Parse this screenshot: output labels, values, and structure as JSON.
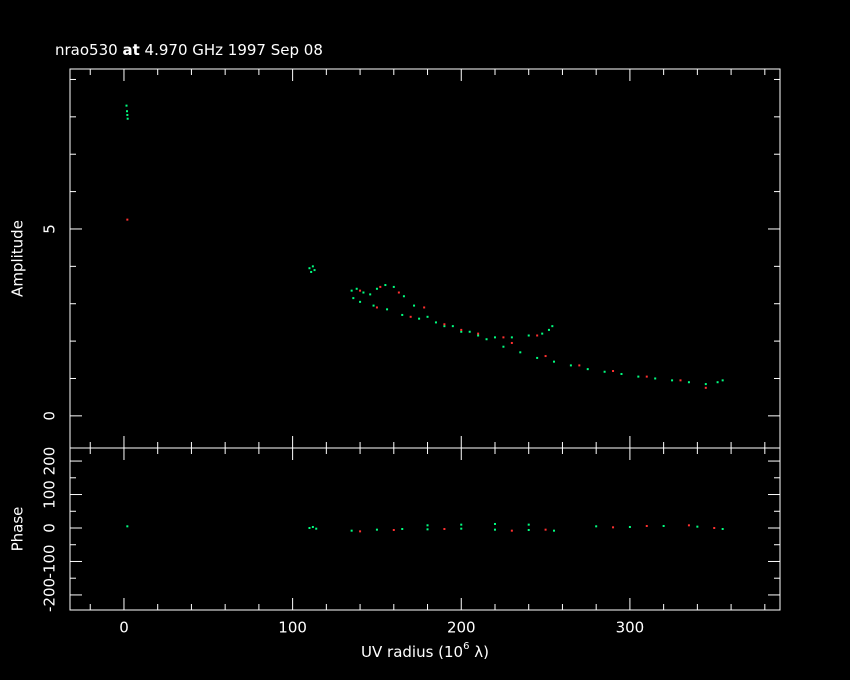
{
  "chart_data": [
    {
      "type": "scatter",
      "title_parts": [
        "nrao530",
        "at",
        "4.970 GHz 1997 Sep 08"
      ],
      "ylabel": "Amplitude",
      "xlim": [
        -32,
        389
      ],
      "xticks": [
        0,
        100,
        200,
        300
      ],
      "xminorticks": [
        -20,
        20,
        40,
        60,
        80,
        120,
        140,
        160,
        180,
        220,
        240,
        260,
        280,
        320,
        340,
        360,
        380
      ],
      "ylim": [
        -0.86,
        9.28
      ],
      "yticks": [
        0,
        5
      ],
      "yminorticks": [
        1,
        2,
        3,
        4,
        6,
        7,
        8,
        9
      ],
      "series": [
        {
          "color": "#00ff80",
          "x": [
            1.5,
            1.8,
            2,
            2.2,
            110,
            111,
            112,
            113,
            135,
            138,
            142,
            146,
            150,
            155,
            160,
            166,
            172,
            180,
            190,
            200,
            210,
            220,
            230,
            240,
            248,
            252,
            254,
            136,
            140,
            148,
            156,
            165,
            175,
            185,
            195,
            205,
            215,
            225,
            235,
            245,
            255,
            265,
            275,
            285,
            295,
            305,
            315,
            325,
            335,
            345,
            352,
            355
          ],
          "values": [
            8.3,
            8.15,
            8.05,
            7.95,
            3.95,
            3.85,
            4.0,
            3.9,
            3.35,
            3.4,
            3.3,
            3.25,
            3.4,
            3.5,
            3.45,
            3.2,
            2.95,
            2.65,
            2.4,
            2.25,
            2.15,
            2.1,
            2.1,
            2.15,
            2.2,
            2.3,
            2.4,
            3.15,
            3.05,
            2.95,
            2.85,
            2.7,
            2.6,
            2.5,
            2.4,
            2.25,
            2.05,
            1.85,
            1.7,
            1.55,
            1.45,
            1.35,
            1.25,
            1.18,
            1.12,
            1.05,
            1.0,
            0.95,
            0.9,
            0.85,
            0.9,
            0.95
          ]
        },
        {
          "color": "#ff3030",
          "x": [
            2,
            140,
            152,
            163,
            178,
            200,
            225,
            245,
            150,
            170,
            190,
            210,
            230,
            250,
            270,
            290,
            310,
            330,
            345
          ],
          "values": [
            5.25,
            3.35,
            3.45,
            3.3,
            2.9,
            2.3,
            2.1,
            2.15,
            2.9,
            2.65,
            2.45,
            2.2,
            1.95,
            1.6,
            1.35,
            1.2,
            1.05,
            0.95,
            0.75
          ]
        }
      ]
    },
    {
      "type": "scatter",
      "ylabel": "Phase",
      "xlabel_parts": [
        "UV radius  (10",
        "6",
        " λ)"
      ],
      "xlim": [
        -32,
        389
      ],
      "xticks": [
        0,
        100,
        200,
        300
      ],
      "xminorticks": [
        -20,
        20,
        40,
        60,
        80,
        120,
        140,
        160,
        180,
        220,
        240,
        260,
        280,
        320,
        340,
        360,
        380
      ],
      "ylim": [
        -245,
        239
      ],
      "yticks": [
        -200,
        -100,
        0,
        100,
        200
      ],
      "yminorticks": [
        -150,
        -50,
        50,
        150
      ],
      "series": [
        {
          "color": "#00ff80",
          "x": [
            2,
            110,
            112,
            114,
            135,
            150,
            165,
            180,
            200,
            220,
            240,
            255,
            180,
            200,
            220,
            240,
            280,
            300,
            320,
            340,
            355
          ],
          "values": [
            5,
            0,
            3,
            -2,
            -8,
            -5,
            -3,
            -4,
            -2,
            -5,
            -6,
            -8,
            8,
            10,
            12,
            10,
            5,
            3,
            6,
            4,
            -3
          ]
        },
        {
          "color": "#ff3030",
          "x": [
            140,
            160,
            190,
            230,
            250,
            290,
            310,
            335,
            350
          ],
          "values": [
            -10,
            -6,
            -3,
            -8,
            -5,
            2,
            6,
            8,
            0
          ]
        }
      ]
    }
  ]
}
